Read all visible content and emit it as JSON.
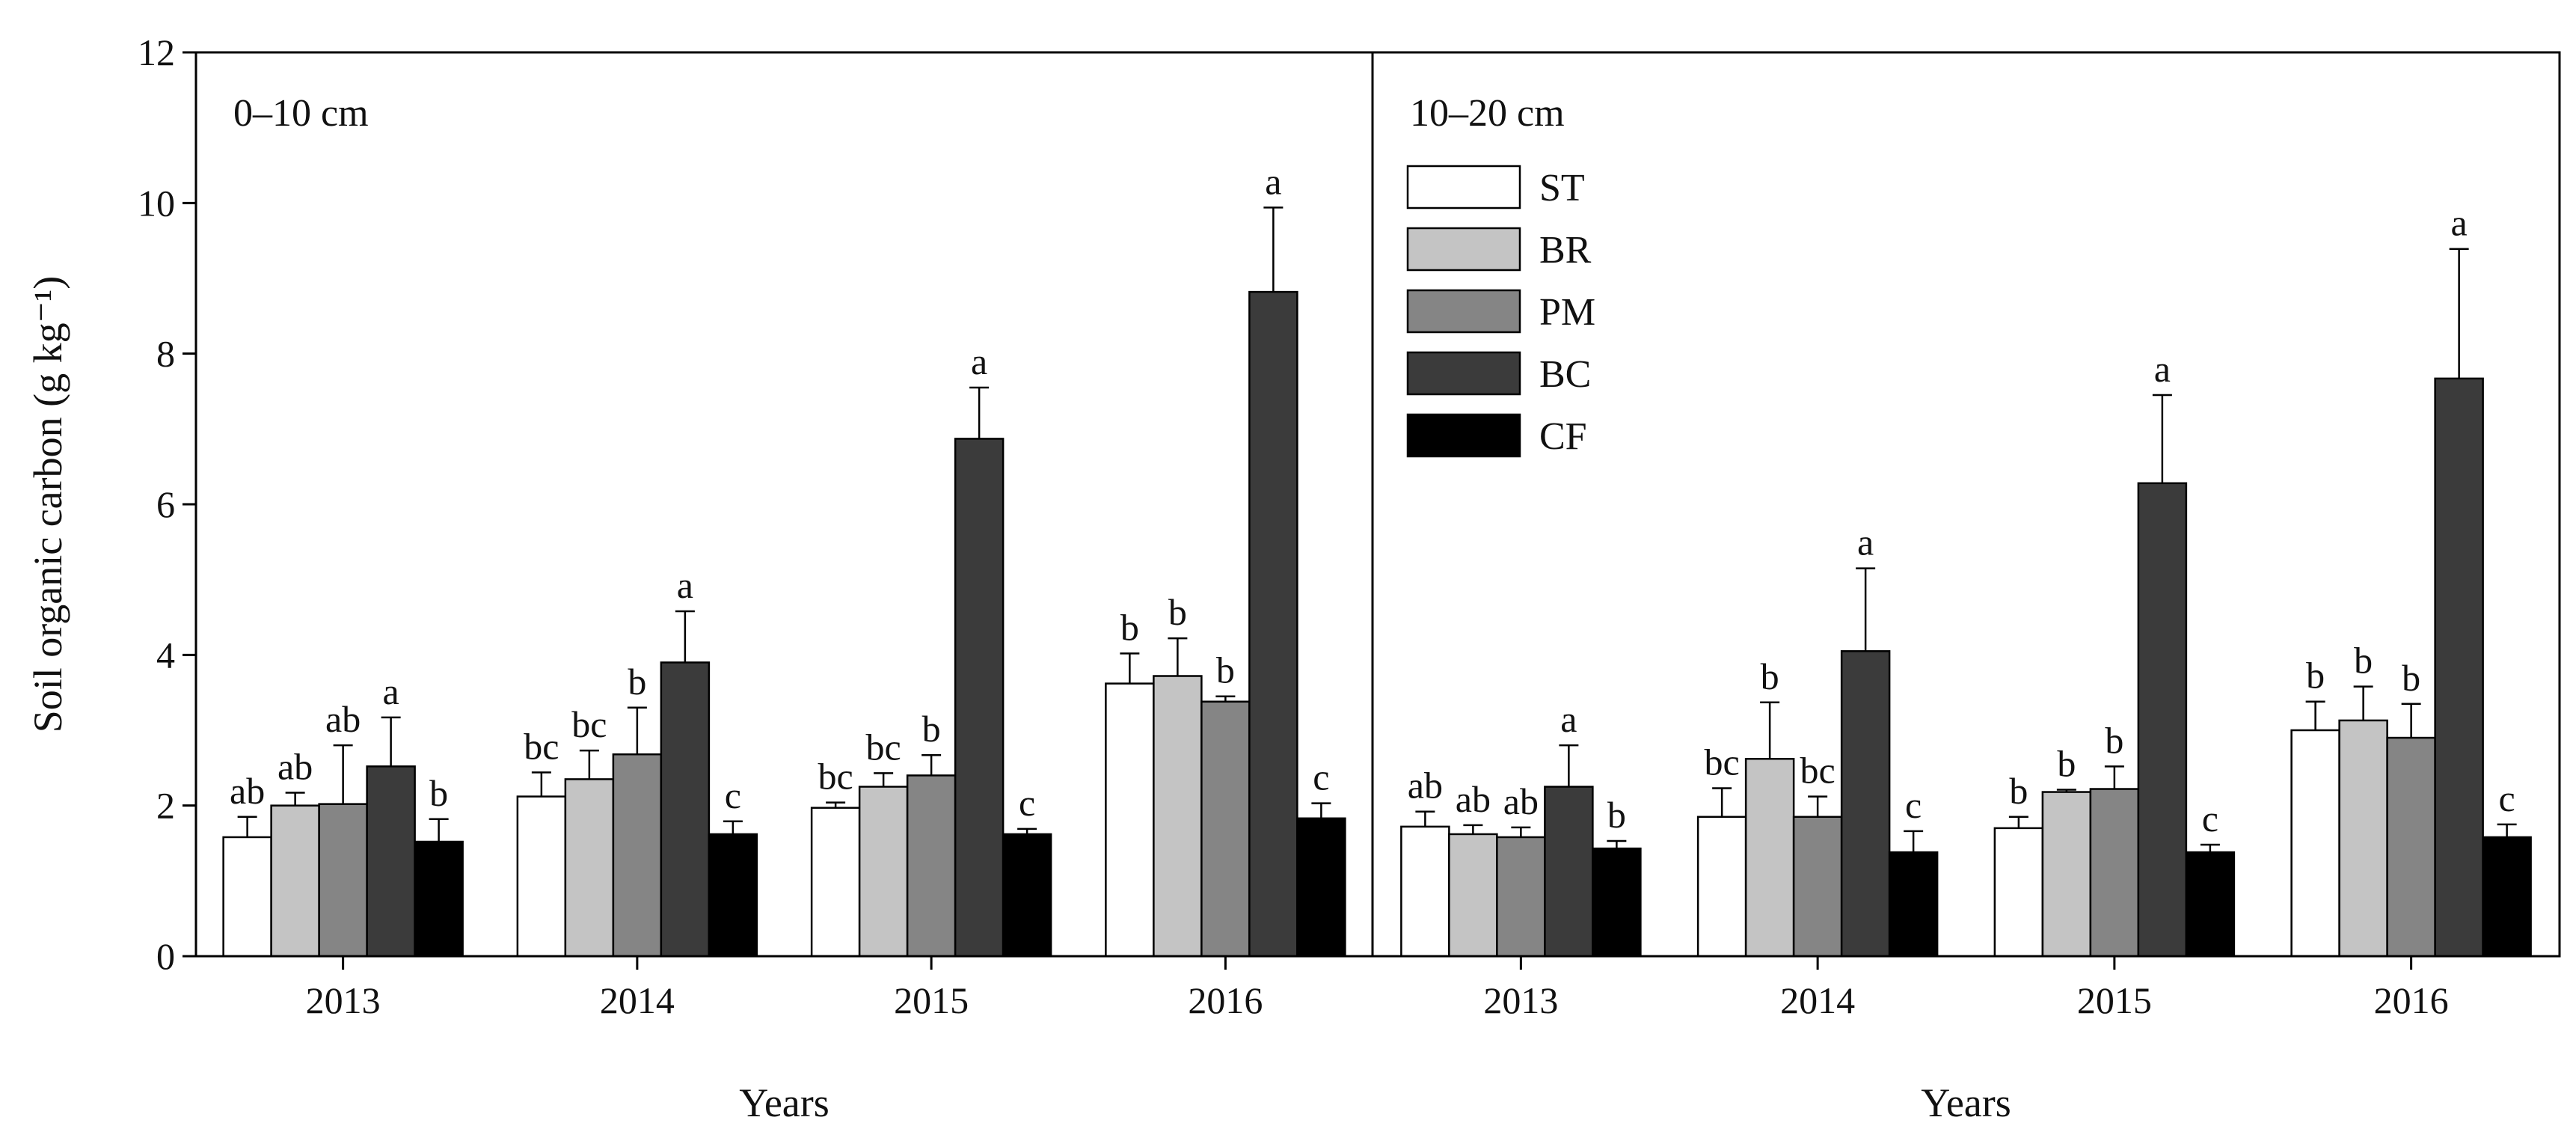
{
  "chart_data": {
    "type": "bar",
    "ylabel": "Soil organic carbon (g kg⁻¹)",
    "ylim": [
      0,
      12
    ],
    "yticks": [
      0,
      2,
      4,
      6,
      8,
      10,
      12
    ],
    "legend": {
      "position": "top-left of right panel",
      "entries": [
        {
          "name": "ST",
          "color": "#ffffff"
        },
        {
          "name": "BR",
          "color": "#c4c4c4"
        },
        {
          "name": "PM",
          "color": "#858585"
        },
        {
          "name": "BC",
          "color": "#3b3b3b"
        },
        {
          "name": "CF",
          "color": "#000000"
        }
      ]
    },
    "panels": [
      {
        "label": "0–10 cm",
        "xlabel": "Years",
        "categories": [
          "2013",
          "2014",
          "2015",
          "2016"
        ],
        "series": [
          {
            "name": "ST",
            "values": [
              1.58,
              2.12,
              1.97,
              3.62
            ],
            "errors": [
              0.27,
              0.32,
              0.07,
              0.4
            ],
            "letters": [
              "ab",
              "bc",
              "bc",
              "b"
            ]
          },
          {
            "name": "BR",
            "values": [
              2.0,
              2.35,
              2.25,
              3.72
            ],
            "errors": [
              0.17,
              0.38,
              0.18,
              0.5
            ],
            "letters": [
              "ab",
              "bc",
              "bc",
              "b"
            ]
          },
          {
            "name": "PM",
            "values": [
              2.02,
              2.68,
              2.4,
              3.38
            ],
            "errors": [
              0.78,
              0.62,
              0.27,
              0.07
            ],
            "letters": [
              "ab",
              "b",
              "b",
              "b"
            ]
          },
          {
            "name": "BC",
            "values": [
              2.52,
              3.9,
              6.87,
              8.82
            ],
            "errors": [
              0.65,
              0.68,
              0.68,
              1.12
            ],
            "letters": [
              "a",
              "a",
              "a",
              "a"
            ]
          },
          {
            "name": "CF",
            "values": [
              1.52,
              1.62,
              1.62,
              1.83
            ],
            "errors": [
              0.3,
              0.17,
              0.07,
              0.2
            ],
            "letters": [
              "b",
              "c",
              "c",
              "c"
            ]
          }
        ]
      },
      {
        "label": "10–20 cm",
        "xlabel": "Years",
        "categories": [
          "2013",
          "2014",
          "2015",
          "2016"
        ],
        "series": [
          {
            "name": "ST",
            "values": [
              1.72,
              1.85,
              1.7,
              3.0
            ],
            "errors": [
              0.2,
              0.38,
              0.15,
              0.38
            ],
            "letters": [
              "ab",
              "bc",
              "b",
              "b"
            ]
          },
          {
            "name": "BR",
            "values": [
              1.62,
              2.62,
              2.18,
              3.13
            ],
            "errors": [
              0.12,
              0.75,
              0.03,
              0.45
            ],
            "letters": [
              "ab",
              "b",
              "b",
              "b"
            ]
          },
          {
            "name": "PM",
            "values": [
              1.58,
              1.85,
              2.22,
              2.9
            ],
            "errors": [
              0.13,
              0.27,
              0.3,
              0.45
            ],
            "letters": [
              "ab",
              "bc",
              "b",
              "b"
            ]
          },
          {
            "name": "BC",
            "values": [
              2.25,
              4.05,
              6.28,
              7.67
            ],
            "errors": [
              0.55,
              1.1,
              1.17,
              1.72
            ],
            "letters": [
              "a",
              "a",
              "a",
              "a"
            ]
          },
          {
            "name": "CF",
            "values": [
              1.43,
              1.38,
              1.38,
              1.58
            ],
            "errors": [
              0.1,
              0.28,
              0.1,
              0.17
            ],
            "letters": [
              "b",
              "c",
              "c",
              "c"
            ]
          }
        ]
      }
    ]
  }
}
